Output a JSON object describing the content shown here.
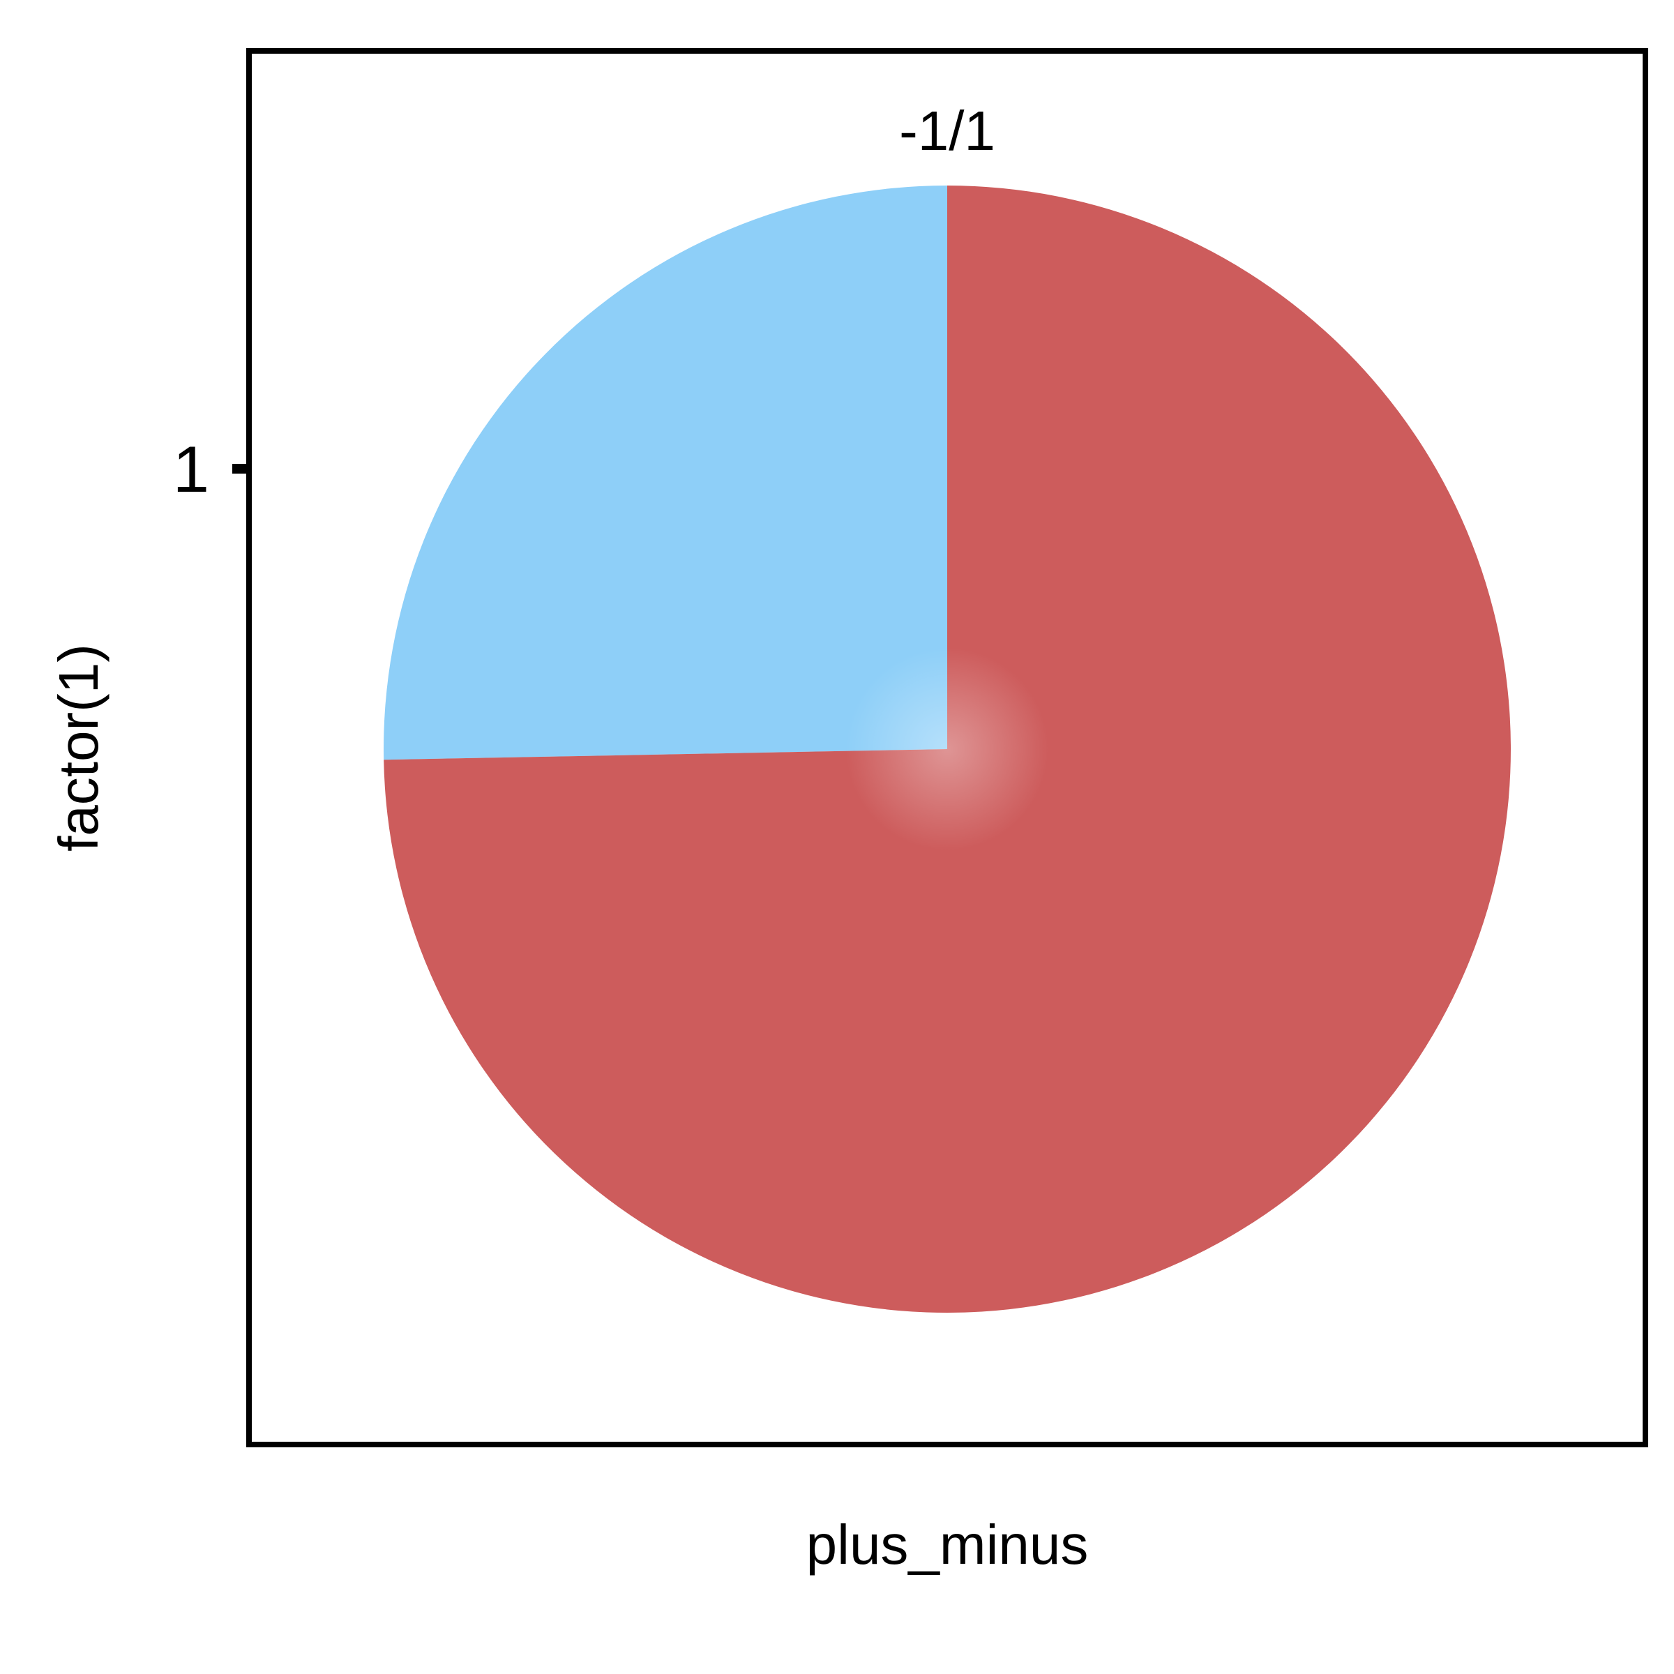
{
  "chart_data": {
    "type": "pie",
    "title": "",
    "facet_label": "-1/1",
    "xlabel": "plus_minus",
    "ylabel": "factor(1)",
    "y_ticks": [
      "1"
    ],
    "slices": [
      {
        "value": 0.253,
        "color": "#8ECFF8"
      },
      {
        "value": 0.747,
        "color": "#CD5C5C"
      }
    ],
    "grid": false,
    "legend": "none"
  }
}
